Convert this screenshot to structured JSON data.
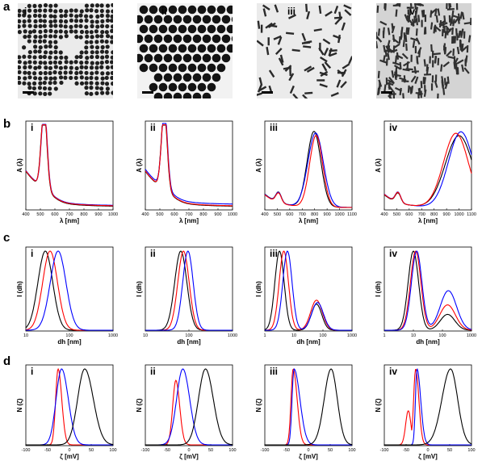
{
  "figure": {
    "row_labels": [
      "a",
      "b",
      "c",
      "d"
    ],
    "panel_labels": [
      "i",
      "ii",
      "iii",
      "iv"
    ],
    "tem_panels": [
      {
        "label": "i",
        "type": "spheres-small"
      },
      {
        "label": "ii",
        "type": "spheres-large"
      },
      {
        "label": "iii",
        "type": "rods-sparse"
      },
      {
        "label": "iv",
        "type": "rods-dense"
      }
    ]
  },
  "chart_data": [
    {
      "row": "b",
      "panel": "i",
      "type": "line",
      "xlabel": "λ [nm]",
      "ylabel": "A (λ)",
      "xlim": [
        400,
        1000
      ],
      "xticks": [
        "400",
        "500",
        "600",
        "700",
        "800",
        "900",
        "1000"
      ],
      "peak": 525,
      "colors": [
        "#000000",
        "#0000ff",
        "#ff0000"
      ]
    },
    {
      "row": "b",
      "panel": "ii",
      "type": "line",
      "xlabel": "λ [nm]",
      "ylabel": "A (λ)",
      "xlim": [
        400,
        1000
      ],
      "xticks": [
        "400",
        "500",
        "600",
        "700",
        "800",
        "900",
        "1000"
      ],
      "peak": 530,
      "colors": [
        "#000000",
        "#0000ff",
        "#ff0000"
      ]
    },
    {
      "row": "b",
      "panel": "iii",
      "type": "line",
      "xlabel": "λ [nm]",
      "ylabel": "A (λ)",
      "xlim": [
        400,
        1100
      ],
      "xticks": [
        "400",
        "500",
        "600",
        "700",
        "800",
        "900",
        "1000",
        "1100"
      ],
      "peak": 800,
      "colors": [
        "#000000",
        "#0000ff",
        "#ff0000"
      ]
    },
    {
      "row": "b",
      "panel": "iv",
      "type": "line",
      "xlabel": "λ [nm]",
      "ylabel": "A (λ)",
      "xlim": [
        400,
        1100
      ],
      "xticks": [
        "400",
        "500",
        "600",
        "700",
        "800",
        "900",
        "1000",
        "1100"
      ],
      "peak": 1000,
      "colors": [
        "#000000",
        "#0000ff",
        "#ff0000"
      ]
    },
    {
      "row": "c",
      "panel": "i",
      "type": "line",
      "xlabel": "dh [nm]",
      "ylabel": "I (dh)",
      "xscale": "log",
      "xticks": [
        "10",
        "100",
        "1000"
      ],
      "colors": [
        "#000000",
        "#ff0000",
        "#0000ff"
      ]
    },
    {
      "row": "c",
      "panel": "ii",
      "type": "line",
      "xlabel": "dh [nm]",
      "ylabel": "I (dh)",
      "xscale": "log",
      "xticks": [
        "10",
        "100",
        "1000"
      ],
      "colors": [
        "#000000",
        "#ff0000",
        "#0000ff"
      ]
    },
    {
      "row": "c",
      "panel": "iii",
      "type": "line",
      "xlabel": "dh [nm]",
      "ylabel": "I (dh)",
      "xscale": "log",
      "xticks": [
        "1",
        "10",
        "100",
        "1000"
      ],
      "colors": [
        "#000000",
        "#ff0000",
        "#0000ff"
      ]
    },
    {
      "row": "c",
      "panel": "iv",
      "type": "line",
      "xlabel": "dh [nm]",
      "ylabel": "I (dh)",
      "xscale": "log",
      "xticks": [
        "1",
        "10",
        "100",
        "1000"
      ],
      "colors": [
        "#000000",
        "#ff0000",
        "#0000ff"
      ]
    },
    {
      "row": "d",
      "panel": "i",
      "type": "line",
      "xlabel": "ζ [mV]",
      "ylabel": "N (ζ)",
      "xlim": [
        -100,
        100
      ],
      "xticks": [
        "-100",
        "-50",
        "0",
        "50",
        "100"
      ],
      "colors": [
        "#ff0000",
        "#0000ff",
        "#000000"
      ]
    },
    {
      "row": "d",
      "panel": "ii",
      "type": "line",
      "xlabel": "ζ [mV]",
      "ylabel": "N (ζ)",
      "xlim": [
        -100,
        100
      ],
      "xticks": [
        "-100",
        "-50",
        "0",
        "50",
        "100"
      ],
      "colors": [
        "#ff0000",
        "#0000ff",
        "#000000"
      ]
    },
    {
      "row": "d",
      "panel": "iii",
      "type": "line",
      "xlabel": "ζ [mV]",
      "ylabel": "N (ζ)",
      "xlim": [
        -100,
        100
      ],
      "xticks": [
        "-100",
        "-50",
        "0",
        "50",
        "100"
      ],
      "colors": [
        "#ff0000",
        "#0000ff",
        "#000000"
      ]
    },
    {
      "row": "d",
      "panel": "iv",
      "type": "line",
      "xlabel": "ζ [mV]",
      "ylabel": "N (ζ)",
      "xlim": [
        -100,
        100
      ],
      "xticks": [
        "-100",
        "-50",
        "0",
        "50",
        "100"
      ],
      "colors": [
        "#ff0000",
        "#0000ff",
        "#000000"
      ]
    }
  ]
}
